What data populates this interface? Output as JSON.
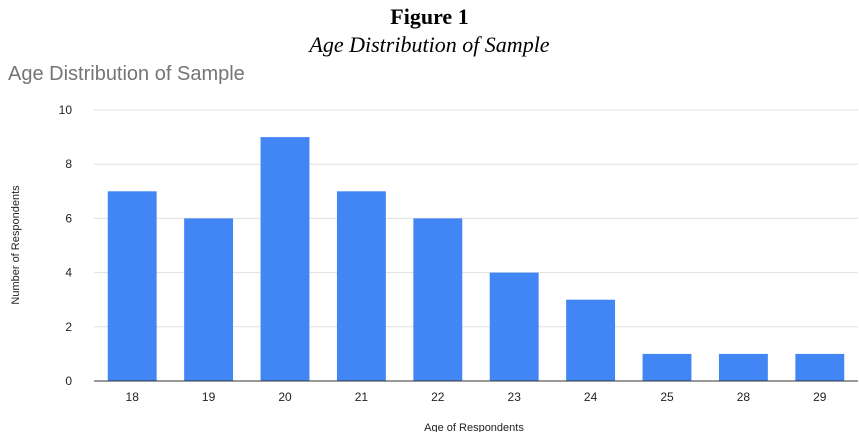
{
  "figure": {
    "label": "Figure 1",
    "caption": "Age Distribution of Sample"
  },
  "chart_data": {
    "type": "bar",
    "title": "Age Distribution of Sample",
    "xlabel": "Age of Respondents",
    "ylabel": "Number of Respondents",
    "categories": [
      "18",
      "19",
      "20",
      "21",
      "22",
      "23",
      "24",
      "25",
      "28",
      "29"
    ],
    "values": [
      7,
      6,
      9,
      7,
      6,
      4,
      3,
      1,
      1,
      1
    ],
    "ylim": [
      0,
      10
    ],
    "yticks": [
      "0",
      "2",
      "4",
      "6",
      "8",
      "10"
    ],
    "grid": true,
    "legend": "none",
    "colors": {
      "bar": "#4285f4",
      "grid": "#e0e0e0",
      "axis": "#333333"
    }
  }
}
